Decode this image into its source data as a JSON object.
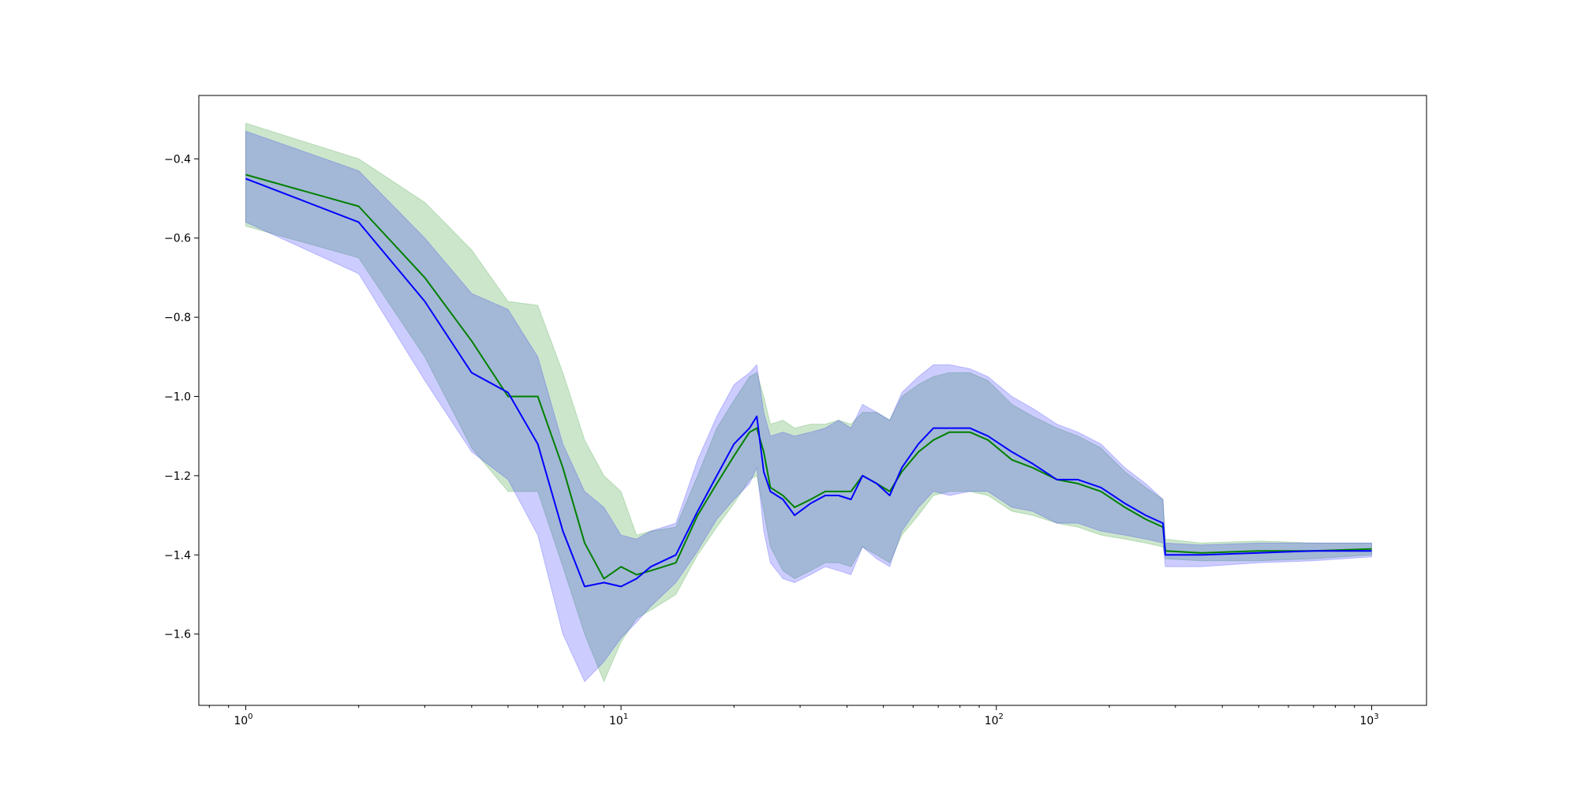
{
  "chart_data": {
    "type": "line",
    "title": "",
    "xlabel": "",
    "ylabel": "",
    "x_scale": "log",
    "xlim": [
      0.75,
      1400
    ],
    "ylim": [
      -1.78,
      -0.24
    ],
    "grid": false,
    "legend": "none",
    "x_ticks": [
      {
        "value": 1,
        "base": "10",
        "exp": "0"
      },
      {
        "value": 10,
        "base": "10",
        "exp": "1"
      },
      {
        "value": 100,
        "base": "10",
        "exp": "2"
      },
      {
        "value": 1000,
        "base": "10",
        "exp": "3"
      }
    ],
    "y_ticks": [
      {
        "value": -0.4,
        "label": "−0.4"
      },
      {
        "value": -0.6,
        "label": "−0.6"
      },
      {
        "value": -0.8,
        "label": "−0.8"
      },
      {
        "value": -1.0,
        "label": "−1.0"
      },
      {
        "value": -1.2,
        "label": "−1.2"
      },
      {
        "value": -1.4,
        "label": "−1.4"
      },
      {
        "value": -1.6,
        "label": "−1.6"
      }
    ],
    "series": [
      {
        "color": "#008000",
        "band_color": "#008000",
        "points": [
          [
            1,
            -0.44,
            -0.31,
            -0.57
          ],
          [
            2,
            -0.52,
            -0.4,
            -0.65
          ],
          [
            3,
            -0.7,
            -0.51,
            -0.9
          ],
          [
            4,
            -0.86,
            -0.63,
            -1.13
          ],
          [
            5,
            -1.0,
            -0.76,
            -1.24
          ],
          [
            6,
            -1.0,
            -0.77,
            -1.24
          ],
          [
            7,
            -1.18,
            -0.94,
            -1.43
          ],
          [
            8,
            -1.37,
            -1.11,
            -1.6
          ],
          [
            9,
            -1.46,
            -1.2,
            -1.72
          ],
          [
            10,
            -1.43,
            -1.24,
            -1.62
          ],
          [
            11,
            -1.45,
            -1.35,
            -1.56
          ],
          [
            12,
            -1.44,
            -1.34,
            -1.54
          ],
          [
            14,
            -1.42,
            -1.33,
            -1.5
          ],
          [
            16,
            -1.3,
            -1.2,
            -1.4
          ],
          [
            18,
            -1.22,
            -1.08,
            -1.33
          ],
          [
            20,
            -1.15,
            -1.01,
            -1.27
          ],
          [
            22,
            -1.09,
            -0.95,
            -1.21
          ],
          [
            23,
            -1.08,
            -0.94,
            -1.2
          ],
          [
            24,
            -1.14,
            -1.0,
            -1.29
          ],
          [
            25,
            -1.23,
            -1.07,
            -1.38
          ],
          [
            27,
            -1.25,
            -1.06,
            -1.44
          ],
          [
            29,
            -1.28,
            -1.08,
            -1.46
          ],
          [
            32,
            -1.26,
            -1.07,
            -1.44
          ],
          [
            35,
            -1.24,
            -1.07,
            -1.42
          ],
          [
            38,
            -1.24,
            -1.06,
            -1.42
          ],
          [
            41,
            -1.24,
            -1.07,
            -1.43
          ],
          [
            44,
            -1.2,
            -1.04,
            -1.38
          ],
          [
            48,
            -1.22,
            -1.04,
            -1.4
          ],
          [
            52,
            -1.24,
            -1.06,
            -1.42
          ],
          [
            56,
            -1.19,
            -1.0,
            -1.35
          ],
          [
            62,
            -1.14,
            -0.97,
            -1.3
          ],
          [
            68,
            -1.11,
            -0.95,
            -1.25
          ],
          [
            75,
            -1.09,
            -0.94,
            -1.24
          ],
          [
            85,
            -1.09,
            -0.94,
            -1.24
          ],
          [
            95,
            -1.11,
            -0.96,
            -1.25
          ],
          [
            110,
            -1.16,
            -1.02,
            -1.29
          ],
          [
            125,
            -1.18,
            -1.05,
            -1.3
          ],
          [
            145,
            -1.21,
            -1.08,
            -1.32
          ],
          [
            165,
            -1.22,
            -1.1,
            -1.33
          ],
          [
            190,
            -1.24,
            -1.13,
            -1.35
          ],
          [
            220,
            -1.28,
            -1.19,
            -1.36
          ],
          [
            250,
            -1.31,
            -1.23,
            -1.37
          ],
          [
            278,
            -1.33,
            -1.26,
            -1.38
          ],
          [
            282,
            -1.39,
            -1.36,
            -1.41
          ],
          [
            350,
            -1.395,
            -1.37,
            -1.415
          ],
          [
            500,
            -1.39,
            -1.365,
            -1.415
          ],
          [
            700,
            -1.39,
            -1.37,
            -1.41
          ],
          [
            1000,
            -1.385,
            -1.37,
            -1.4
          ]
        ]
      },
      {
        "color": "#0000ff",
        "band_color": "#0000ff",
        "points": [
          [
            1,
            -0.45,
            -0.33,
            -0.56
          ],
          [
            2,
            -0.56,
            -0.43,
            -0.69
          ],
          [
            3,
            -0.76,
            -0.6,
            -0.96
          ],
          [
            4,
            -0.94,
            -0.74,
            -1.14
          ],
          [
            5,
            -0.99,
            -0.78,
            -1.21
          ],
          [
            6,
            -1.12,
            -0.9,
            -1.35
          ],
          [
            7,
            -1.34,
            -1.12,
            -1.6
          ],
          [
            8,
            -1.48,
            -1.24,
            -1.72
          ],
          [
            9,
            -1.47,
            -1.28,
            -1.67
          ],
          [
            10,
            -1.48,
            -1.35,
            -1.61
          ],
          [
            11,
            -1.46,
            -1.36,
            -1.57
          ],
          [
            12,
            -1.43,
            -1.34,
            -1.53
          ],
          [
            14,
            -1.4,
            -1.32,
            -1.47
          ],
          [
            16,
            -1.29,
            -1.16,
            -1.39
          ],
          [
            18,
            -1.2,
            -1.05,
            -1.31
          ],
          [
            20,
            -1.12,
            -0.97,
            -1.26
          ],
          [
            22,
            -1.08,
            -0.94,
            -1.22
          ],
          [
            23,
            -1.05,
            -0.92,
            -1.18
          ],
          [
            24,
            -1.19,
            -1.04,
            -1.34
          ],
          [
            25,
            -1.24,
            -1.1,
            -1.42
          ],
          [
            27,
            -1.26,
            -1.09,
            -1.46
          ],
          [
            29,
            -1.3,
            -1.1,
            -1.47
          ],
          [
            32,
            -1.27,
            -1.09,
            -1.45
          ],
          [
            35,
            -1.25,
            -1.08,
            -1.43
          ],
          [
            38,
            -1.25,
            -1.06,
            -1.44
          ],
          [
            41,
            -1.26,
            -1.08,
            -1.45
          ],
          [
            44,
            -1.2,
            -1.02,
            -1.38
          ],
          [
            48,
            -1.22,
            -1.04,
            -1.41
          ],
          [
            52,
            -1.25,
            -1.06,
            -1.43
          ],
          [
            56,
            -1.18,
            -0.99,
            -1.34
          ],
          [
            62,
            -1.12,
            -0.95,
            -1.28
          ],
          [
            68,
            -1.08,
            -0.92,
            -1.24
          ],
          [
            75,
            -1.08,
            -0.92,
            -1.25
          ],
          [
            85,
            -1.08,
            -0.93,
            -1.24
          ],
          [
            95,
            -1.1,
            -0.95,
            -1.24
          ],
          [
            110,
            -1.14,
            -1.0,
            -1.28
          ],
          [
            125,
            -1.17,
            -1.03,
            -1.29
          ],
          [
            145,
            -1.21,
            -1.07,
            -1.32
          ],
          [
            165,
            -1.21,
            -1.09,
            -1.32
          ],
          [
            190,
            -1.23,
            -1.12,
            -1.34
          ],
          [
            220,
            -1.27,
            -1.18,
            -1.35
          ],
          [
            250,
            -1.3,
            -1.22,
            -1.36
          ],
          [
            278,
            -1.32,
            -1.26,
            -1.37
          ],
          [
            282,
            -1.4,
            -1.37,
            -1.43
          ],
          [
            350,
            -1.4,
            -1.375,
            -1.43
          ],
          [
            500,
            -1.395,
            -1.37,
            -1.42
          ],
          [
            700,
            -1.39,
            -1.37,
            -1.415
          ],
          [
            1000,
            -1.39,
            -1.37,
            -1.405
          ]
        ]
      }
    ]
  }
}
